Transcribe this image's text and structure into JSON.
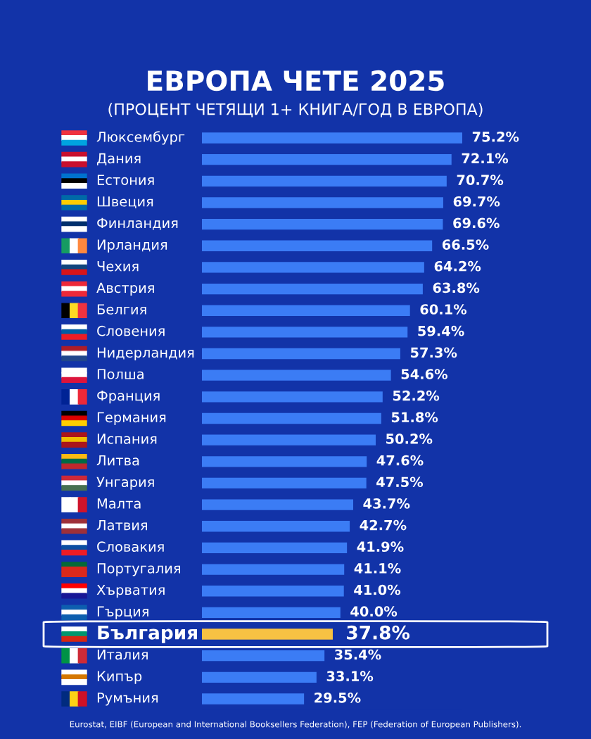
{
  "chart_data": {
    "type": "bar",
    "orientation": "horizontal",
    "title": "ЕВРОПА ЧЕТЕ 2025",
    "subtitle": "(ПРОЦЕНТ ЧЕТЯЩИ 1+ КНИГА/ГОД В ЕВРОПА)",
    "categories": [
      "Люксембург",
      "Дания",
      "Естония",
      "Швеция",
      "Финландия",
      "Ирландия",
      "Чехия",
      "Австрия",
      "Белгия",
      "Словения",
      "Нидерландия",
      "Полша",
      "Франция",
      "Германия",
      "Испания",
      "Литва",
      "Унгария",
      "Малта",
      "Латвия",
      "Словакия",
      "Португалия",
      "Хърватия",
      "Гърция",
      "България",
      "Италия",
      "Кипър",
      "Румъния"
    ],
    "values": [
      75.2,
      72.1,
      70.7,
      69.7,
      69.6,
      66.5,
      64.2,
      63.8,
      60.1,
      59.4,
      57.3,
      54.6,
      52.2,
      51.8,
      50.2,
      47.6,
      47.5,
      43.7,
      42.7,
      41.9,
      41.1,
      41.0,
      40.0,
      37.8,
      35.4,
      33.1,
      29.5
    ],
    "value_labels": [
      "75.2%",
      "72.1%",
      "70.7%",
      "69.7%",
      "69.6%",
      "66.5%",
      "64.2%",
      "63.8%",
      "60.1%",
      "59.4%",
      "57.3%",
      "54.6%",
      "52.2%",
      "51.8%",
      "50.2%",
      "47.6%",
      "47.5%",
      "43.7%",
      "42.7%",
      "41.9%",
      "41.1%",
      "41.0%",
      "40.0%",
      "37.8%",
      "35.4%",
      "33.1%",
      "29.5%"
    ],
    "colors": [
      "#3b7cf5",
      "#3b7cf5",
      "#3b7cf5",
      "#3b7cf5",
      "#3b7cf5",
      "#3b7cf5",
      "#3b7cf5",
      "#3b7cf5",
      "#3b7cf5",
      "#3b7cf5",
      "#3b7cf5",
      "#3b7cf5",
      "#3b7cf5",
      "#3b7cf5",
      "#3b7cf5",
      "#3b7cf5",
      "#3b7cf5",
      "#3b7cf5",
      "#3b7cf5",
      "#3b7cf5",
      "#3b7cf5",
      "#3b7cf5",
      "#3b7cf5",
      "#f7c243",
      "#3b7cf5",
      "#3b7cf5",
      "#3b7cf5"
    ],
    "annotations": [
      "Eurostat, EIBF (European and International Booksellers Federation), FEP (Federation of European Publishers)."
    ]
  }
}
